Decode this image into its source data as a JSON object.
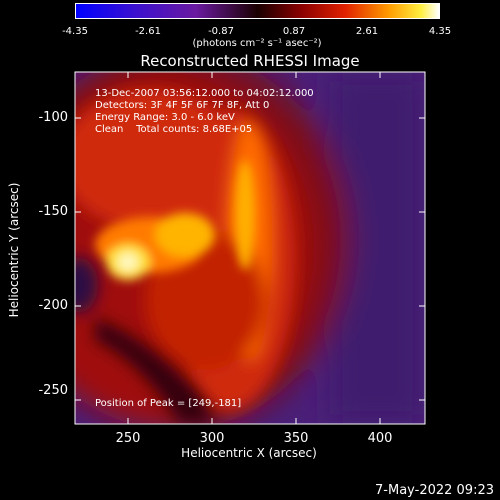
{
  "colorbar": {
    "ticks": [
      "-4.35",
      "-2.61",
      "-0.87",
      "0.87",
      "2.61",
      "4.35"
    ],
    "units_line": "(photons cm⁻² s⁻¹ asec⁻²)"
  },
  "chart_data": {
    "type": "heatmap",
    "title": "Reconstructed RHESSI Image",
    "xlabel": "Heliocentric X (arcsec)",
    "ylabel": "Heliocentric Y (arcsec)",
    "xlim": [
      221,
      413
    ],
    "ylim": [
      -267,
      -83
    ],
    "xticks": [
      "250",
      "300",
      "350",
      "400"
    ],
    "yticks": [
      "-100",
      "-150",
      "-200",
      "-250"
    ],
    "color_range": [
      -4.35,
      4.35
    ],
    "colormap": "rainbow/red-temperature",
    "peak_position": [
      249,
      -181
    ],
    "annotations": {
      "time_range": "13-Dec-2007 03:56:12.000 to 04:02:12.000",
      "detectors": "Detectors: 3F 4F 5F 6F 7F 8F, Att 0",
      "energy_range": "Energy Range: 3.0 - 6.0 keV",
      "clean": "Clean    Total counts: 8.68E+05",
      "peak": "Position of Peak = [249,-181]"
    }
  },
  "footer": "7-May-2022 09:23"
}
